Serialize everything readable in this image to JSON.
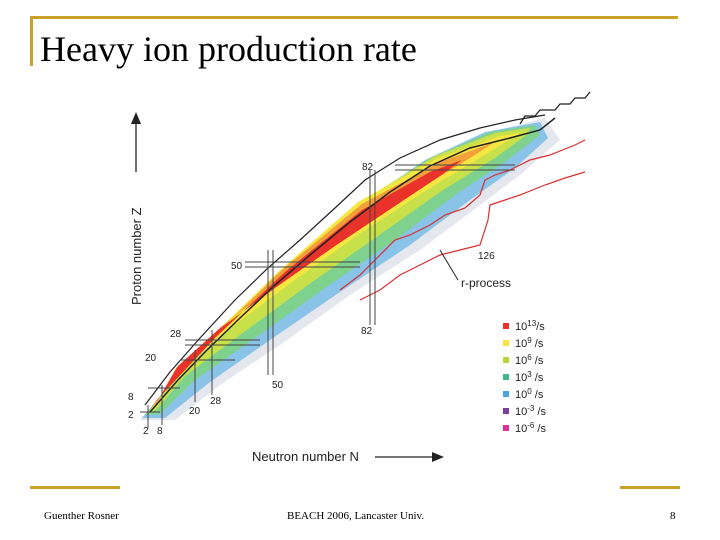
{
  "slide": {
    "title": "Heavy ion production rate",
    "footer_author": "Guenther Rosner",
    "footer_venue": "BEACH 2006, Lancaster Univ.",
    "footer_page": "8"
  },
  "diagram": {
    "y_axis_label": "Proton number Z",
    "x_axis_label": "Neutron number N",
    "rprocess_label": "r-process",
    "proton_magic": [
      "2",
      "8",
      "20",
      "28",
      "50",
      "82"
    ],
    "neutron_magic": [
      "2",
      "8",
      "20",
      "28",
      "50",
      "82",
      "126"
    ],
    "legend": [
      {
        "text": "10^13/s",
        "color": "#e8322a"
      },
      {
        "text": "10^9 /s",
        "color": "#f5e642"
      },
      {
        "text": "10^6 /s",
        "color": "#b5d93a"
      },
      {
        "text": "10^3 /s",
        "color": "#3fb98a"
      },
      {
        "text": "10^0 /s",
        "color": "#4aa3df"
      },
      {
        "text": "10^-3 /s",
        "color": "#7b3fa0"
      },
      {
        "text": "10^-6 /s",
        "color": "#e0309a"
      }
    ]
  }
}
